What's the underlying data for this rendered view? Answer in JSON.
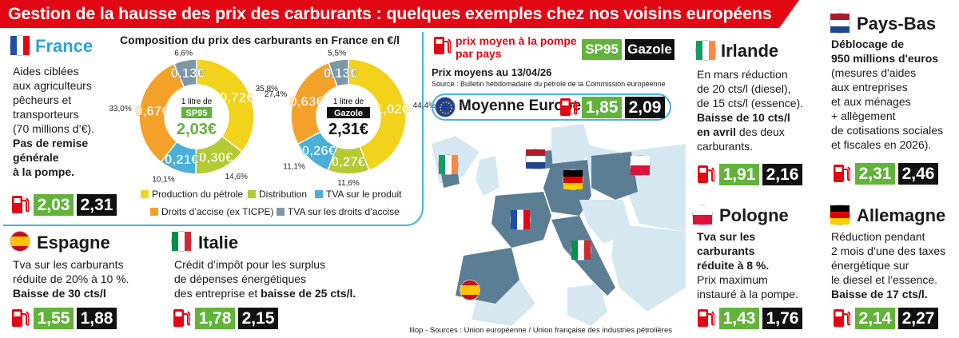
{
  "title": "Gestion de la hausse des prix des carburants : quelques exemples chez nos voisins européens",
  "colors": {
    "red": "#e30613",
    "sp95": "#61b33a",
    "gazole": "#111111",
    "blue": "#4ab0d8",
    "map": "#5b7e95"
  },
  "france": {
    "name": "France",
    "text": [
      "Aides ciblées",
      "aux agriculteurs",
      "pêcheurs et",
      "transporteurs",
      "(70 millions d’€)."
    ],
    "bold": [
      "Pas de remise",
      "générale",
      "à la  pompe."
    ],
    "sp95": "2,03",
    "gazole": "2,31"
  },
  "chart_data": {
    "type": "pie",
    "title": "Composition du prix des carburants en France en €/l",
    "legend": [
      {
        "name": "Production du pétrole",
        "color": "#f2d21b"
      },
      {
        "name": "Distribution",
        "color": "#b5c934"
      },
      {
        "name": "TVA sur le produit",
        "color": "#4ab0d8"
      },
      {
        "name": "Droits d’accise (ex TICPE)",
        "color": "#f4a12a"
      },
      {
        "name": "TVA sur les droits d’accise",
        "color": "#7c98a6"
      }
    ],
    "charts": [
      {
        "center_top": "1 litre de",
        "center_label": "SP95",
        "total": "2,03€",
        "slices": [
          {
            "name": "Production du pétrole",
            "value": 0.72,
            "label": "0,72€",
            "pct": "35,8%"
          },
          {
            "name": "Distribution",
            "value": 0.3,
            "label": "0,30€",
            "pct": "14,6%"
          },
          {
            "name": "TVA sur le produit",
            "value": 0.21,
            "label": "0,21€",
            "pct": "10,1%"
          },
          {
            "name": "Droits d’accise (ex TICPE)",
            "value": 0.67,
            "label": "0,67€",
            "pct": "33,0%"
          },
          {
            "name": "TVA sur les droits d’accise",
            "value": 0.13,
            "label": "0,13€",
            "pct": "6,6%"
          }
        ]
      },
      {
        "center_top": "1 litre de",
        "center_label": "Gazole",
        "total": "2,31€",
        "slices": [
          {
            "name": "Production du pétrole",
            "value": 1.02,
            "label": "1,02€",
            "pct": "44,4%"
          },
          {
            "name": "Distribution",
            "value": 0.27,
            "label": "0,27€",
            "pct": "11,6%"
          },
          {
            "name": "TVA sur le produit",
            "value": 0.26,
            "label": "0,26€",
            "pct": "11,1%"
          },
          {
            "name": "Droits d’accise (ex TICPE)",
            "value": 0.63,
            "label": "0,63€",
            "pct": "27,4%"
          },
          {
            "name": "TVA sur les droits d’accise",
            "value": 0.13,
            "label": "0,13€",
            "pct": "5,5%"
          }
        ]
      }
    ]
  },
  "header_legend": {
    "label1": "prix moyen à la pompe",
    "label2": "par pays",
    "sp95": "SP95",
    "gazole": "Gazole",
    "date": "Prix moyens au 13/04/26",
    "source": "Source : Bulletin hebdomadaire du pétrole de la Commission européenne"
  },
  "europe": {
    "label": "Moyenne Europe",
    "sp95": "1,85",
    "gazole": "2,09"
  },
  "credit": "Illop - Sources : Union européenne / Union française des industries pétrolières",
  "espagne": {
    "name": "Espagne",
    "text": [
      "Tva sur les carburants",
      "réduite de 20% à 10 %."
    ],
    "bold": "Baisse de 30 cts/l",
    "sp95": "1,55",
    "gazole": "1,88"
  },
  "italie": {
    "name": "Italie",
    "text": [
      "Crédit d’impôt pour les surplus",
      "de dépenses énergétiques",
      "des entreprise et "
    ],
    "bold": "baisse de 25 cts/l.",
    "sp95": "1,78",
    "gazole": "2,15"
  },
  "irlande": {
    "name": "Irlande",
    "text": [
      "En mars réduction",
      "de 20 cts/l (diesel),",
      "de 15 cts/l (essence)."
    ],
    "bold": [
      "Baisse de 10 cts/l",
      "en avril"
    ],
    "tail": " des deux",
    "tail2": "carburants.",
    "sp95": "1,91",
    "gazole": "2,16"
  },
  "pologne": {
    "name": "Pologne",
    "bold": [
      "Tva sur les",
      "carburants",
      "réduite à 8 %."
    ],
    "text": [
      "Prix maximum",
      "instauré à la pompe."
    ],
    "sp95": "1,43",
    "gazole": "1,76"
  },
  "paysbas": {
    "name": "Pays-Bas",
    "bold": [
      "Déblocage de",
      "950 millions d'euros"
    ],
    "text": [
      "(mesures d'aides",
      "aux entreprises",
      "et aux ménages",
      "+ allègement",
      "de cotisations sociales",
      "et fiscales en 2026)."
    ],
    "sp95": "2,31",
    "gazole": "2,46"
  },
  "allemagne": {
    "name": "Allemagne",
    "text": [
      "Réduction pendant",
      "2 mois d’une des taxes",
      "énergétique  sur",
      "le diesel et l’essence."
    ],
    "bold": "Baisse de 17 cts/l.",
    "sp95": "2,14",
    "gazole": "2,27"
  }
}
